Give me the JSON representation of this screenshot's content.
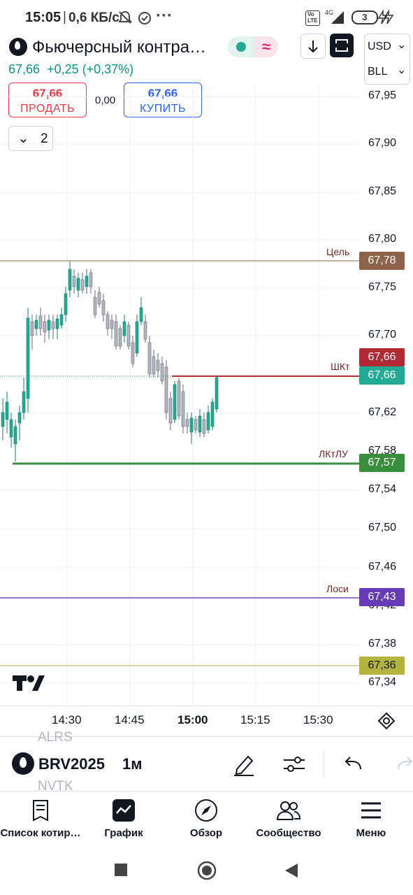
{
  "status_bar": {
    "time": "15:05",
    "speed": "0,6 КБ/с",
    "net": "4G",
    "battery": "3"
  },
  "header": {
    "title": "Фьючерсный контра…",
    "price": "67,66",
    "change": "+0,25 (+0,37%)",
    "currency": "USD",
    "unit": "BLL"
  },
  "trade": {
    "sell_price": "67,66",
    "sell_label": "ПРОДАТЬ",
    "spread": "0,00",
    "buy_price": "67,66",
    "buy_label": "КУПИТЬ",
    "collapse_count": "2"
  },
  "price_axis": {
    "ticks": [
      "67,95",
      "67,90",
      "67,85",
      "67,80",
      "67,75",
      "67,70",
      "67,62",
      "67,58",
      "67,54",
      "67,50",
      "67,46",
      "67,42",
      "67,38",
      "67,34"
    ]
  },
  "levels": [
    {
      "label": "Цель",
      "price": "67,78",
      "color": "#8d6449"
    },
    {
      "label": "ШКт",
      "price": "67,66",
      "color": "#b22833"
    },
    {
      "label": "",
      "price": "67,66",
      "color": "#22ab94"
    },
    {
      "label": "ЛКтЛУ",
      "price": "67,57",
      "color": "#388e3c"
    },
    {
      "label": "Лоси",
      "price": "67,43",
      "color": "#673ab7"
    },
    {
      "label": "",
      "price": "67,36",
      "color": "#b5b33f"
    }
  ],
  "time_axis": {
    "ticks": [
      "14:30",
      "14:45",
      "15:00",
      "15:15",
      "15:30"
    ],
    "bold_tick": "15:00"
  },
  "toolbar": {
    "symbol": "BRV2025",
    "interval": "1м",
    "ghost_top": "ALRS",
    "ghost_bottom": "NVTK"
  },
  "nav": {
    "watchlist": "Список котир…",
    "chart": "График",
    "overview": "Обзор",
    "community": "Сообщество",
    "menu": "Меню"
  },
  "colors": {
    "up": "#22ab94",
    "down": "#b2b5be",
    "accent": "#2962ff"
  }
}
